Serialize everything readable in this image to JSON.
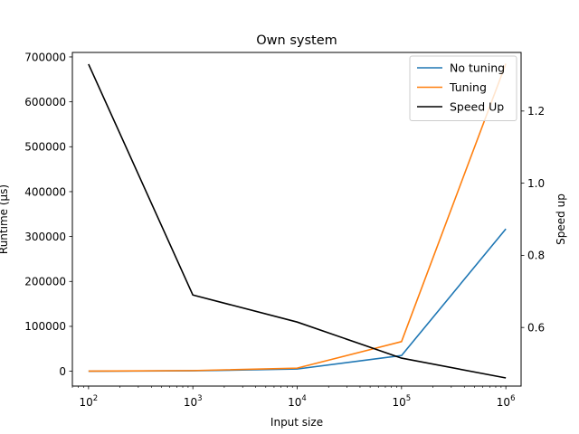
{
  "chart_data": {
    "type": "line",
    "title": "Own system",
    "xlabel": "Input size",
    "ylabel_left": "Runtime (µs)",
    "ylabel_right": "Speed up",
    "x": [
      100,
      1000,
      10000,
      100000,
      1000000
    ],
    "x_scale": "log",
    "x_ticks": [
      {
        "value": 100,
        "base": "10",
        "exp": "2"
      },
      {
        "value": 1000,
        "base": "10",
        "exp": "3"
      },
      {
        "value": 10000,
        "base": "10",
        "exp": "4"
      },
      {
        "value": 100000,
        "base": "10",
        "exp": "5"
      },
      {
        "value": 1000000,
        "base": "10",
        "exp": "6"
      }
    ],
    "xlim": [
      70,
      1400000
    ],
    "ylim_left": [
      -33000,
      710000
    ],
    "y_ticks_left": [
      0,
      100000,
      200000,
      300000,
      400000,
      500000,
      600000,
      700000
    ],
    "ylim_right": [
      0.4375,
      1.3625
    ],
    "y_ticks_right": [
      0.6,
      0.8,
      1.0,
      1.2
    ],
    "series": [
      {
        "name": "No tuning",
        "axis": "left",
        "color": "#1f77b4",
        "values": [
          100,
          1000,
          5000,
          35000,
          317000
        ]
      },
      {
        "name": "Tuning",
        "axis": "left",
        "color": "#ff7f0e",
        "values": [
          400,
          1500,
          7000,
          66000,
          685000
        ]
      },
      {
        "name": "Speed Up",
        "axis": "right",
        "color": "#000000",
        "values": [
          1.33,
          0.69,
          0.615,
          0.515,
          0.46
        ]
      }
    ],
    "legend_position": "top-right",
    "grid": false
  }
}
